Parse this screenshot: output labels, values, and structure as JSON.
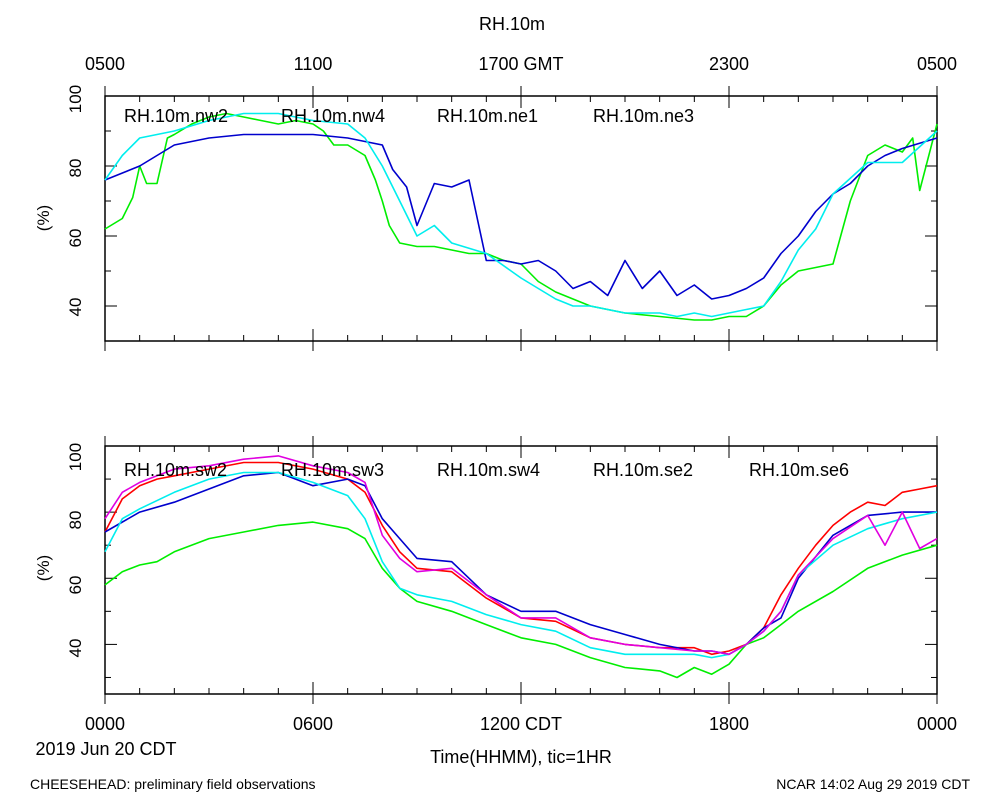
{
  "figure": {
    "title": "RH.10m",
    "top_axis_ticks": [
      "0500",
      "1100",
      "1700 GMT",
      "2300",
      "0500"
    ],
    "bottom_axis_ticks": [
      "0000",
      "0600",
      "1200 CDT",
      "1800",
      "0000"
    ],
    "date_label": "2019 Jun 20 CDT",
    "xlabel": "Time(HHMM), tic=1HR",
    "footer_left": "CHEESEHEAD: preliminary field observations",
    "footer_right": "NCAR 14:02 Aug 29 2019 CDT"
  },
  "chart_data": [
    {
      "type": "line",
      "title": "RH.10m",
      "xlabel": "Time(HHMM), tic=1HR",
      "ylabel": "(%)",
      "xlim": [
        0,
        24
      ],
      "ylim": [
        30,
        100
      ],
      "x_units": "hours since 0000 CDT 2019 Jun 20",
      "yticks": [
        "40",
        "60",
        "80",
        "100"
      ],
      "series": [
        {
          "name": "RH.10m.nw2",
          "color": "#ff0000",
          "x": [
            0,
            24
          ],
          "values": [
            null,
            null
          ]
        },
        {
          "name": "RH.10m.nw4",
          "color": "#00ee00",
          "x": [
            0,
            0.5,
            0.8,
            1.0,
            1.2,
            1.5,
            1.8,
            2.0,
            2.5,
            3.0,
            3.5,
            4.0,
            4.5,
            5.0,
            5.5,
            6.0,
            6.3,
            6.6,
            7.0,
            7.5,
            7.8,
            8.0,
            8.2,
            8.5,
            9.0,
            9.5,
            10.0,
            10.5,
            11.0,
            11.5,
            12.0,
            12.5,
            13.0,
            14.0,
            15.0,
            16.0,
            17.0,
            17.5,
            18.0,
            18.5,
            19.0,
            19.5,
            20.0,
            20.5,
            21.0,
            21.5,
            22.0,
            22.5,
            23.0,
            23.3,
            23.5,
            24
          ],
          "values": [
            62,
            65,
            71,
            80,
            75,
            75,
            88,
            89,
            92,
            94,
            95,
            94,
            93,
            92,
            93,
            92,
            90,
            86,
            86,
            83,
            76,
            70,
            63,
            58,
            57,
            57,
            56,
            55,
            55,
            53,
            52,
            47,
            44,
            40,
            38,
            37,
            36,
            36,
            37,
            37,
            40,
            46,
            50,
            51,
            52,
            70,
            83,
            86,
            84,
            88,
            73,
            92
          ]
        },
        {
          "name": "RH.10m.ne1",
          "color": "#0000cd",
          "x": [
            0,
            1,
            2,
            3,
            4,
            5,
            6,
            7,
            7.5,
            8.0,
            8.3,
            8.7,
            9.0,
            9.5,
            10.0,
            10.5,
            11.0,
            11.5,
            12.0,
            12.5,
            13.0,
            13.5,
            14.0,
            14.5,
            15.0,
            15.5,
            16.0,
            16.5,
            17.0,
            17.5,
            18.0,
            18.5,
            19.0,
            19.5,
            20.0,
            20.5,
            21.0,
            21.5,
            22.0,
            22.5,
            23.0,
            24
          ],
          "values": [
            76,
            80,
            86,
            88,
            89,
            89,
            89,
            88,
            87,
            86,
            79,
            74,
            63,
            75,
            74,
            76,
            53,
            53,
            52,
            53,
            50,
            45,
            47,
            43,
            53,
            45,
            50,
            43,
            46,
            42,
            43,
            45,
            48,
            55,
            60,
            67,
            72,
            75,
            80,
            83,
            85,
            88
          ]
        },
        {
          "name": "RH.10m.ne3",
          "color": "#00eeee",
          "x": [
            0,
            0.5,
            1,
            1.5,
            2,
            3,
            4,
            5,
            6,
            7,
            7.5,
            8.0,
            8.5,
            9.0,
            9.5,
            10,
            11,
            12,
            12.5,
            13,
            13.5,
            14,
            15,
            16,
            16.5,
            17,
            17.5,
            18,
            18.5,
            19,
            19.5,
            20,
            20.5,
            21,
            22,
            23,
            24
          ],
          "values": [
            76,
            83,
            88,
            89,
            90,
            93,
            95,
            95,
            93,
            92,
            88,
            80,
            70,
            60,
            63,
            58,
            55,
            48,
            45,
            42,
            40,
            40,
            38,
            38,
            37,
            38,
            37,
            38,
            39,
            40,
            47,
            56,
            62,
            72,
            81,
            81,
            90
          ]
        }
      ]
    },
    {
      "type": "line",
      "title": "RH.10m",
      "xlabel": "Time(HHMM), tic=1HR",
      "ylabel": "(%)",
      "xlim": [
        0,
        24
      ],
      "ylim": [
        25,
        100
      ],
      "x_units": "hours since 0000 CDT 2019 Jun 20",
      "yticks": [
        "40",
        "60",
        "80",
        "100"
      ],
      "series": [
        {
          "name": "RH.10m.sw2",
          "color": "#ff0000",
          "x": [
            0,
            0.5,
            1,
            1.5,
            2,
            3,
            4,
            5,
            6,
            7,
            7.5,
            8,
            8.5,
            9,
            10,
            11,
            12,
            13,
            14,
            15,
            16,
            17,
            17.5,
            18,
            18.5,
            19,
            19.5,
            20,
            20.5,
            21,
            21.5,
            22,
            22.5,
            23,
            23.5,
            24
          ],
          "values": [
            74,
            84,
            88,
            90,
            91,
            93,
            95,
            95,
            93,
            90,
            86,
            76,
            68,
            63,
            62,
            54,
            48,
            47,
            42,
            40,
            39,
            39,
            37,
            38,
            40,
            45,
            55,
            63,
            70,
            76,
            80,
            83,
            82,
            86,
            87,
            88
          ]
        },
        {
          "name": "RH.10m.sw3",
          "color": "#00ee00",
          "x": [
            0,
            0.5,
            1,
            1.5,
            2,
            3,
            4,
            5,
            6,
            7,
            7.5,
            8,
            8.5,
            9,
            10,
            11,
            12,
            13,
            14,
            15,
            16,
            16.5,
            17,
            17.5,
            18,
            18.5,
            19,
            19.5,
            20,
            21,
            22,
            23,
            24
          ],
          "values": [
            58,
            62,
            64,
            65,
            68,
            72,
            74,
            76,
            77,
            75,
            72,
            63,
            57,
            53,
            50,
            46,
            42,
            40,
            36,
            33,
            32,
            30,
            33,
            31,
            34,
            40,
            42,
            46,
            50,
            56,
            63,
            67,
            70
          ]
        },
        {
          "name": "RH.10m.sw4",
          "color": "#0000cd",
          "x": [
            0,
            1,
            2,
            3,
            4,
            5,
            6,
            7,
            7.5,
            8,
            8.5,
            9,
            10,
            11,
            12,
            13,
            14,
            15,
            16,
            17,
            17.5,
            18,
            18.5,
            19,
            19.5,
            20,
            21,
            22,
            23,
            24
          ],
          "values": [
            74,
            80,
            83,
            87,
            91,
            92,
            88,
            90,
            88,
            78,
            72,
            66,
            65,
            55,
            50,
            50,
            46,
            43,
            40,
            38,
            38,
            37,
            40,
            45,
            48,
            60,
            73,
            79,
            80,
            80
          ]
        },
        {
          "name": "RH.10m.se2",
          "color": "#00eeee",
          "x": [
            0,
            0.5,
            1,
            2,
            3,
            4,
            5,
            6,
            7,
            7.5,
            8,
            8.5,
            9,
            10,
            11,
            12,
            13,
            14,
            15,
            16,
            17,
            17.5,
            18,
            18.5,
            19,
            19.5,
            20,
            21,
            22,
            23,
            24
          ],
          "values": [
            68,
            78,
            81,
            86,
            90,
            92,
            92,
            89,
            85,
            78,
            65,
            57,
            55,
            53,
            49,
            46,
            44,
            39,
            37,
            37,
            37,
            36,
            37,
            40,
            44,
            50,
            61,
            70,
            75,
            78,
            80
          ]
        },
        {
          "name": "RH.10m.se6",
          "color": "#e000e0",
          "x": [
            0,
            0.5,
            1,
            2,
            3,
            4,
            5,
            6,
            7,
            7.5,
            8,
            8.5,
            9,
            10,
            11,
            12,
            13,
            14,
            15,
            16,
            17,
            17.5,
            18,
            18.5,
            19,
            19.5,
            20,
            21,
            22,
            22.5,
            23,
            23.5,
            24
          ],
          "values": [
            78,
            86,
            89,
            93,
            94,
            96,
            97,
            94,
            92,
            89,
            73,
            66,
            62,
            63,
            55,
            48,
            48,
            42,
            40,
            39,
            38,
            38,
            37,
            40,
            44,
            50,
            61,
            72,
            79,
            70,
            80,
            69,
            72
          ]
        }
      ]
    }
  ]
}
